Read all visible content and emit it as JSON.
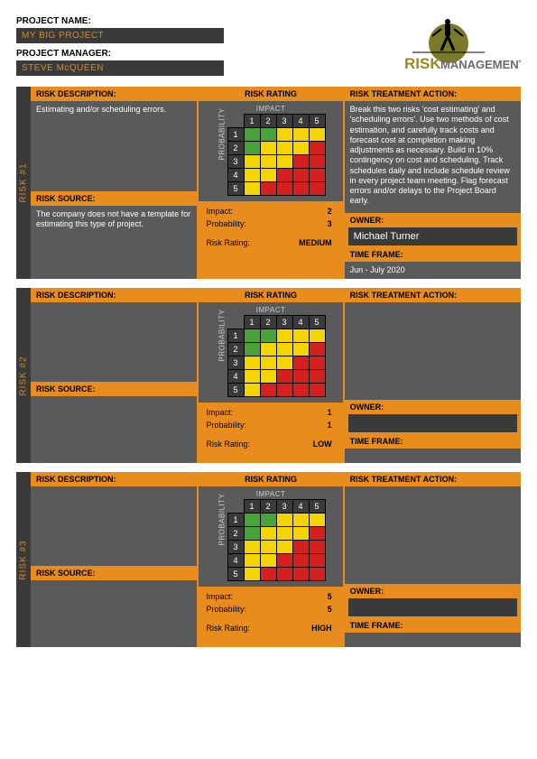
{
  "header": {
    "project_name_label": "PROJECT NAME:",
    "project_name": "MY BIG PROJECT",
    "project_manager_label": "PROJECT MANAGER:",
    "project_manager": "STEVE McQUEEN",
    "logo_text_1": "RISK",
    "logo_text_2": "MANAGEMENT"
  },
  "labels": {
    "risk_description": "RISK DESCRIPTION:",
    "risk_source": "RISK SOURCE:",
    "risk_rating": "RISK RATING",
    "impact": "IMPACT",
    "probability": "PROBABILITY",
    "impact_lbl": "Impact:",
    "probability_lbl": "Probability:",
    "risk_rating_lbl": "Risk Rating:",
    "treatment": "RISK TREATMENT ACTION:",
    "owner": "OWNER:",
    "timeframe": "TIME FRAME:",
    "matrix_cols": [
      "1",
      "2",
      "3",
      "4",
      "5"
    ],
    "matrix_rows": [
      "1",
      "2",
      "3",
      "4",
      "5"
    ]
  },
  "colors": {
    "orange": "#e88c1e",
    "dark": "#3a3a3a",
    "grey": "#5a5a5a",
    "green": "#4aa33a",
    "yellow": "#f4d500",
    "red": "#d62020",
    "text_orange": "#d88a1e"
  },
  "matrix_colors": [
    [
      "green",
      "green",
      "yellow",
      "yellow",
      "yellow"
    ],
    [
      "green",
      "yellow",
      "yellow",
      "yellow",
      "red"
    ],
    [
      "yellow",
      "yellow",
      "yellow",
      "red",
      "red"
    ],
    [
      "yellow",
      "yellow",
      "red",
      "red",
      "red"
    ],
    [
      "yellow",
      "red",
      "red",
      "red",
      "red"
    ]
  ],
  "risks": [
    {
      "tab": "RISK  #1",
      "description": "Estimating and/or scheduling errors.",
      "source": "The company does not have a template for estimating this type of project.",
      "impact": "2",
      "probability": "3",
      "rating": "MEDIUM",
      "treatment": "Break this two risks 'cost estimating' and 'scheduling errors'. Use two methods of cost estimation, and carefully track costs and forecast cost at completion making adjustments as necessary. Build in 10% contingency on cost and scheduling. Track schedules daily and include schedule review in every project team meeting. Flag forecast errors and/or delays to the Project Board early.",
      "owner": "Michael Turner",
      "timeframe": "Jun - July 2020"
    },
    {
      "tab": "RISK  #2",
      "description": "",
      "source": "",
      "impact": "1",
      "probability": "1",
      "rating": "LOW",
      "treatment": "",
      "owner": "",
      "timeframe": ""
    },
    {
      "tab": "RISK  #3",
      "description": "",
      "source": "",
      "impact": "5",
      "probability": "5",
      "rating": "HIGH",
      "treatment": "",
      "owner": "",
      "timeframe": ""
    }
  ]
}
